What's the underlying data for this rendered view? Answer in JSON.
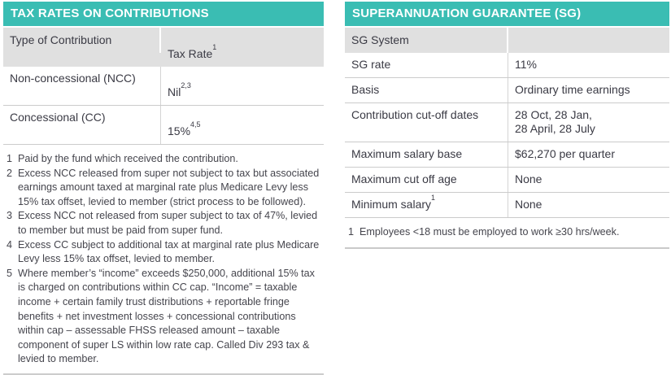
{
  "colors": {
    "accent_teal": "#3abdb3",
    "header_row_gray": "#e0e0e0",
    "row_separator": "#cbcbcb",
    "text_dark": "#3a3a44",
    "footnote_text": "#45454d"
  },
  "left_table": {
    "title": "TAX RATES ON CONTRIBUTIONS",
    "columns": [
      {
        "label": "Type of Contribution",
        "sup": ""
      },
      {
        "label": "Tax Rate",
        "sup": "1"
      }
    ],
    "rows": [
      {
        "type": "Non-concessional (NCC)",
        "rate": "Nil",
        "rate_sup": "2,3"
      },
      {
        "type": "Concessional (CC)",
        "rate": "15%",
        "rate_sup": "4,5"
      }
    ],
    "footnotes": [
      {
        "num": "1",
        "text": "Paid by the fund which received the contribution."
      },
      {
        "num": "2",
        "text": "Excess NCC released from super not subject to tax but associated earnings amount taxed at marginal rate plus Medicare Levy less 15% tax offset, levied to member (strict process to be followed)."
      },
      {
        "num": "3",
        "text": "Excess NCC not released from super subject to tax of 47%, levied to member but must be paid from super fund."
      },
      {
        "num": "4",
        "text": "Excess CC subject to additional tax at marginal rate plus Medicare Levy less 15% tax offset, levied to member."
      },
      {
        "num": "5",
        "text": "Where member’s “income” exceeds $250,000, additional 15% tax is charged on contributions within CC cap. “Income” = taxable income + certain family trust distributions + reportable fringe benefits + net investment losses + concessional contributions within cap – assessable FHSS released amount – taxable component of super LS within low rate cap. Called Div 293 tax & levied to member."
      }
    ]
  },
  "right_table": {
    "title": "SUPERANNUATION GUARANTEE (SG)",
    "section_header": "SG System",
    "rows": [
      {
        "label": "SG rate",
        "label_sup": "",
        "value": "11%"
      },
      {
        "label": "Basis",
        "label_sup": "",
        "value": "Ordinary time earnings"
      },
      {
        "label": "Contribution cut-off dates",
        "label_sup": "",
        "value": "28 Oct, 28 Jan,\n28 April, 28 July"
      },
      {
        "label": "Maximum salary base",
        "label_sup": "",
        "value": "$62,270 per quarter"
      },
      {
        "label": "Maximum cut off age",
        "label_sup": "",
        "value": "None"
      },
      {
        "label": "Minimum salary",
        "label_sup": "1",
        "value": "None"
      }
    ],
    "footnote": {
      "num": "1",
      "text": "Employees <18 must be employed to work ≥30 hrs/week."
    }
  }
}
